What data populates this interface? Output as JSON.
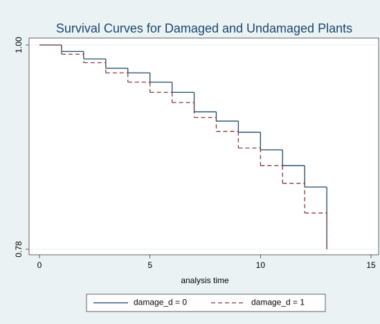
{
  "chart_data": {
    "type": "step",
    "title": "Survival Curves for Damaged and Undamaged Plants",
    "x_label": "analysis time",
    "x": [
      0,
      1,
      2,
      3,
      4,
      5,
      6,
      7,
      8,
      9,
      10,
      11,
      12,
      13
    ],
    "series": [
      {
        "name": "damage_d = 0",
        "color": "#1a476f",
        "dash": "solid",
        "values": [
          1.0,
          0.993,
          0.985,
          0.975,
          0.97,
          0.96,
          0.949,
          0.928,
          0.918,
          0.906,
          0.887,
          0.87,
          0.847,
          0.78
        ]
      },
      {
        "name": "damage_d = 1",
        "color": "#90353b",
        "dash": "dashed",
        "values": [
          1.0,
          0.99,
          0.981,
          0.97,
          0.96,
          0.949,
          0.938,
          0.922,
          0.907,
          0.889,
          0.87,
          0.851,
          0.819,
          0.78
        ]
      }
    ],
    "xlim": [
      0,
      15
    ],
    "xticks": [
      0,
      5,
      10,
      15
    ],
    "ylim": [
      0.78,
      1.0
    ],
    "yticks": [
      0.78,
      {
        "value": 1.0,
        "label": "1.00"
      }
    ],
    "legend": "bottom"
  }
}
